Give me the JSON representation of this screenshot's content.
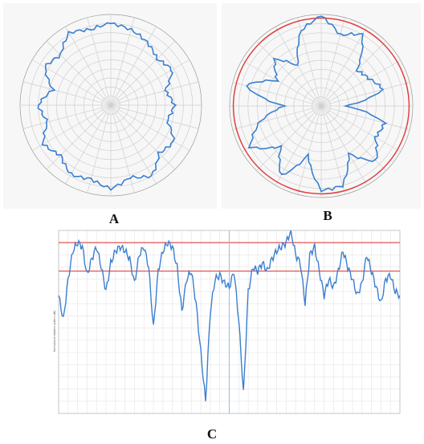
{
  "labels": {
    "a": "A",
    "b": "B",
    "c": "C"
  },
  "colors": {
    "pattern": "#3a7fd0",
    "limit": "#e04040",
    "grid": "#cfcfcf",
    "grid_dark": "#9a9a9a"
  },
  "chart_data": [
    {
      "type": "line",
      "panel": "A",
      "coordinate_system": "polar",
      "angle_step_deg": 15,
      "radius_range": [
        0,
        1
      ],
      "grid": true,
      "angles_deg": [
        0,
        15,
        30,
        45,
        60,
        75,
        90,
        105,
        120,
        135,
        150,
        165,
        180,
        195,
        210,
        225,
        240,
        255,
        270,
        285,
        300,
        315,
        330,
        345
      ],
      "radius": [
        0.9,
        0.86,
        0.8,
        0.72,
        0.78,
        0.62,
        0.7,
        0.64,
        0.8,
        0.75,
        0.9,
        0.82,
        0.92,
        0.84,
        0.88,
        0.78,
        0.86,
        0.72,
        0.8,
        0.66,
        0.84,
        0.78,
        0.92,
        0.86
      ]
    },
    {
      "type": "line",
      "panel": "B",
      "coordinate_system": "polar",
      "angle_step_deg": 15,
      "radius_range": [
        0,
        1
      ],
      "grid": true,
      "reference_circle_radius": 0.96,
      "angles_deg": [
        0,
        15,
        30,
        45,
        60,
        75,
        90,
        105,
        120,
        135,
        150,
        165,
        180,
        195,
        210,
        225,
        240,
        255,
        270,
        285,
        300,
        315,
        330,
        345
      ],
      "radius": [
        0.98,
        0.8,
        0.9,
        0.55,
        0.6,
        0.7,
        0.25,
        0.72,
        0.68,
        0.85,
        0.6,
        0.9,
        0.92,
        0.55,
        0.88,
        0.62,
        0.9,
        0.7,
        0.4,
        0.86,
        0.55,
        0.72,
        0.5,
        0.85
      ]
    },
    {
      "type": "line",
      "panel": "C",
      "grid": true,
      "xlim": [
        -180,
        180
      ],
      "ylim": [
        -45,
        0
      ],
      "ylabel": "Normalized radiation pattern (dB)",
      "limit_lines_y": [
        -3,
        -10
      ],
      "vertical_marker_x": 0,
      "x": [
        -180,
        -175,
        -170,
        -165,
        -160,
        -155,
        -150,
        -145,
        -140,
        -135,
        -130,
        -125,
        -120,
        -115,
        -110,
        -105,
        -100,
        -95,
        -90,
        -85,
        -80,
        -75,
        -70,
        -65,
        -60,
        -55,
        -50,
        -45,
        -40,
        -35,
        -30,
        -25,
        -20,
        -15,
        -10,
        -5,
        0,
        5,
        10,
        15,
        20,
        25,
        30,
        35,
        40,
        45,
        50,
        55,
        60,
        65,
        70,
        75,
        80,
        85,
        90,
        95,
        100,
        105,
        110,
        115,
        120,
        125,
        130,
        135,
        140,
        145,
        150,
        155,
        160,
        165,
        170,
        175,
        180
      ],
      "y": [
        -16,
        -22,
        -12,
        -5,
        -3,
        -4,
        -11,
        -7,
        -4,
        -9,
        -15,
        -8,
        -5,
        -4,
        -5,
        -7,
        -13,
        -6,
        -4,
        -9,
        -24,
        -10,
        -5,
        -3,
        -4,
        -9,
        -20,
        -12,
        -10,
        -18,
        -30,
        -42,
        -20,
        -12,
        -11,
        -13,
        -14,
        -10,
        -22,
        -40,
        -15,
        -9,
        -10,
        -8,
        -10,
        -7,
        -5,
        -4,
        -3,
        0,
        -6,
        -8,
        -18,
        -6,
        -4,
        -10,
        -16,
        -12,
        -14,
        -10,
        -5,
        -9,
        -12,
        -16,
        -13,
        -6,
        -10,
        -14,
        -18,
        -12,
        -11,
        -15,
        -16
      ]
    }
  ]
}
